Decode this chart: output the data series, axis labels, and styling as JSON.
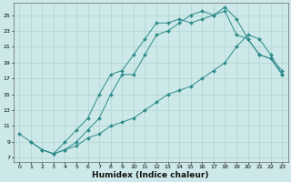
{
  "line1_x": [
    0,
    1,
    2,
    3,
    4,
    5,
    6,
    7,
    8,
    9,
    10,
    11,
    12,
    13,
    14,
    15,
    16,
    17,
    18,
    19,
    20,
    21,
    22,
    23
  ],
  "line1_y": [
    10,
    9,
    8,
    7.5,
    9,
    10.5,
    12,
    15,
    17.5,
    18,
    20,
    22,
    24,
    24,
    24.5,
    24,
    24.5,
    25,
    26,
    24.5,
    22,
    20,
    19.5,
    18
  ],
  "line2_x": [
    1,
    2,
    3,
    4,
    5,
    6,
    7,
    8,
    9,
    10,
    11,
    12,
    13,
    14,
    15,
    16,
    17,
    18,
    19,
    20,
    21,
    22,
    23
  ],
  "line2_y": [
    9,
    8,
    7.5,
    8,
    9,
    10.5,
    12,
    15,
    17.5,
    17.5,
    20,
    22.5,
    23,
    24,
    25,
    25.5,
    25,
    25.5,
    22.5,
    22,
    20,
    19.5,
    17.5
  ],
  "line3_x": [
    2,
    3,
    4,
    5,
    6,
    7,
    8,
    9,
    10,
    11,
    12,
    13,
    14,
    15,
    16,
    17,
    18,
    19,
    20,
    21,
    22,
    23
  ],
  "line3_y": [
    8,
    7.5,
    8,
    8.5,
    9.5,
    10,
    11,
    11.5,
    12,
    13,
    14,
    15,
    15.5,
    16,
    17,
    18,
    19,
    21,
    22.5,
    22,
    20,
    17.5
  ],
  "color": "#2d8b8b",
  "bg_color": "#cde8e8",
  "grid_color": "#afd4d4",
  "xlabel": "Humidex (Indice chaleur)",
  "xlim": [
    -0.5,
    23.5
  ],
  "ylim": [
    6.5,
    26.5
  ],
  "yticks": [
    7,
    9,
    11,
    13,
    15,
    17,
    19,
    21,
    23,
    25
  ],
  "xticks": [
    0,
    1,
    2,
    3,
    4,
    5,
    6,
    7,
    8,
    9,
    10,
    11,
    12,
    13,
    14,
    15,
    16,
    17,
    18,
    19,
    20,
    21,
    22,
    23
  ],
  "tick_fontsize": 4.5,
  "xlabel_fontsize": 6.5
}
